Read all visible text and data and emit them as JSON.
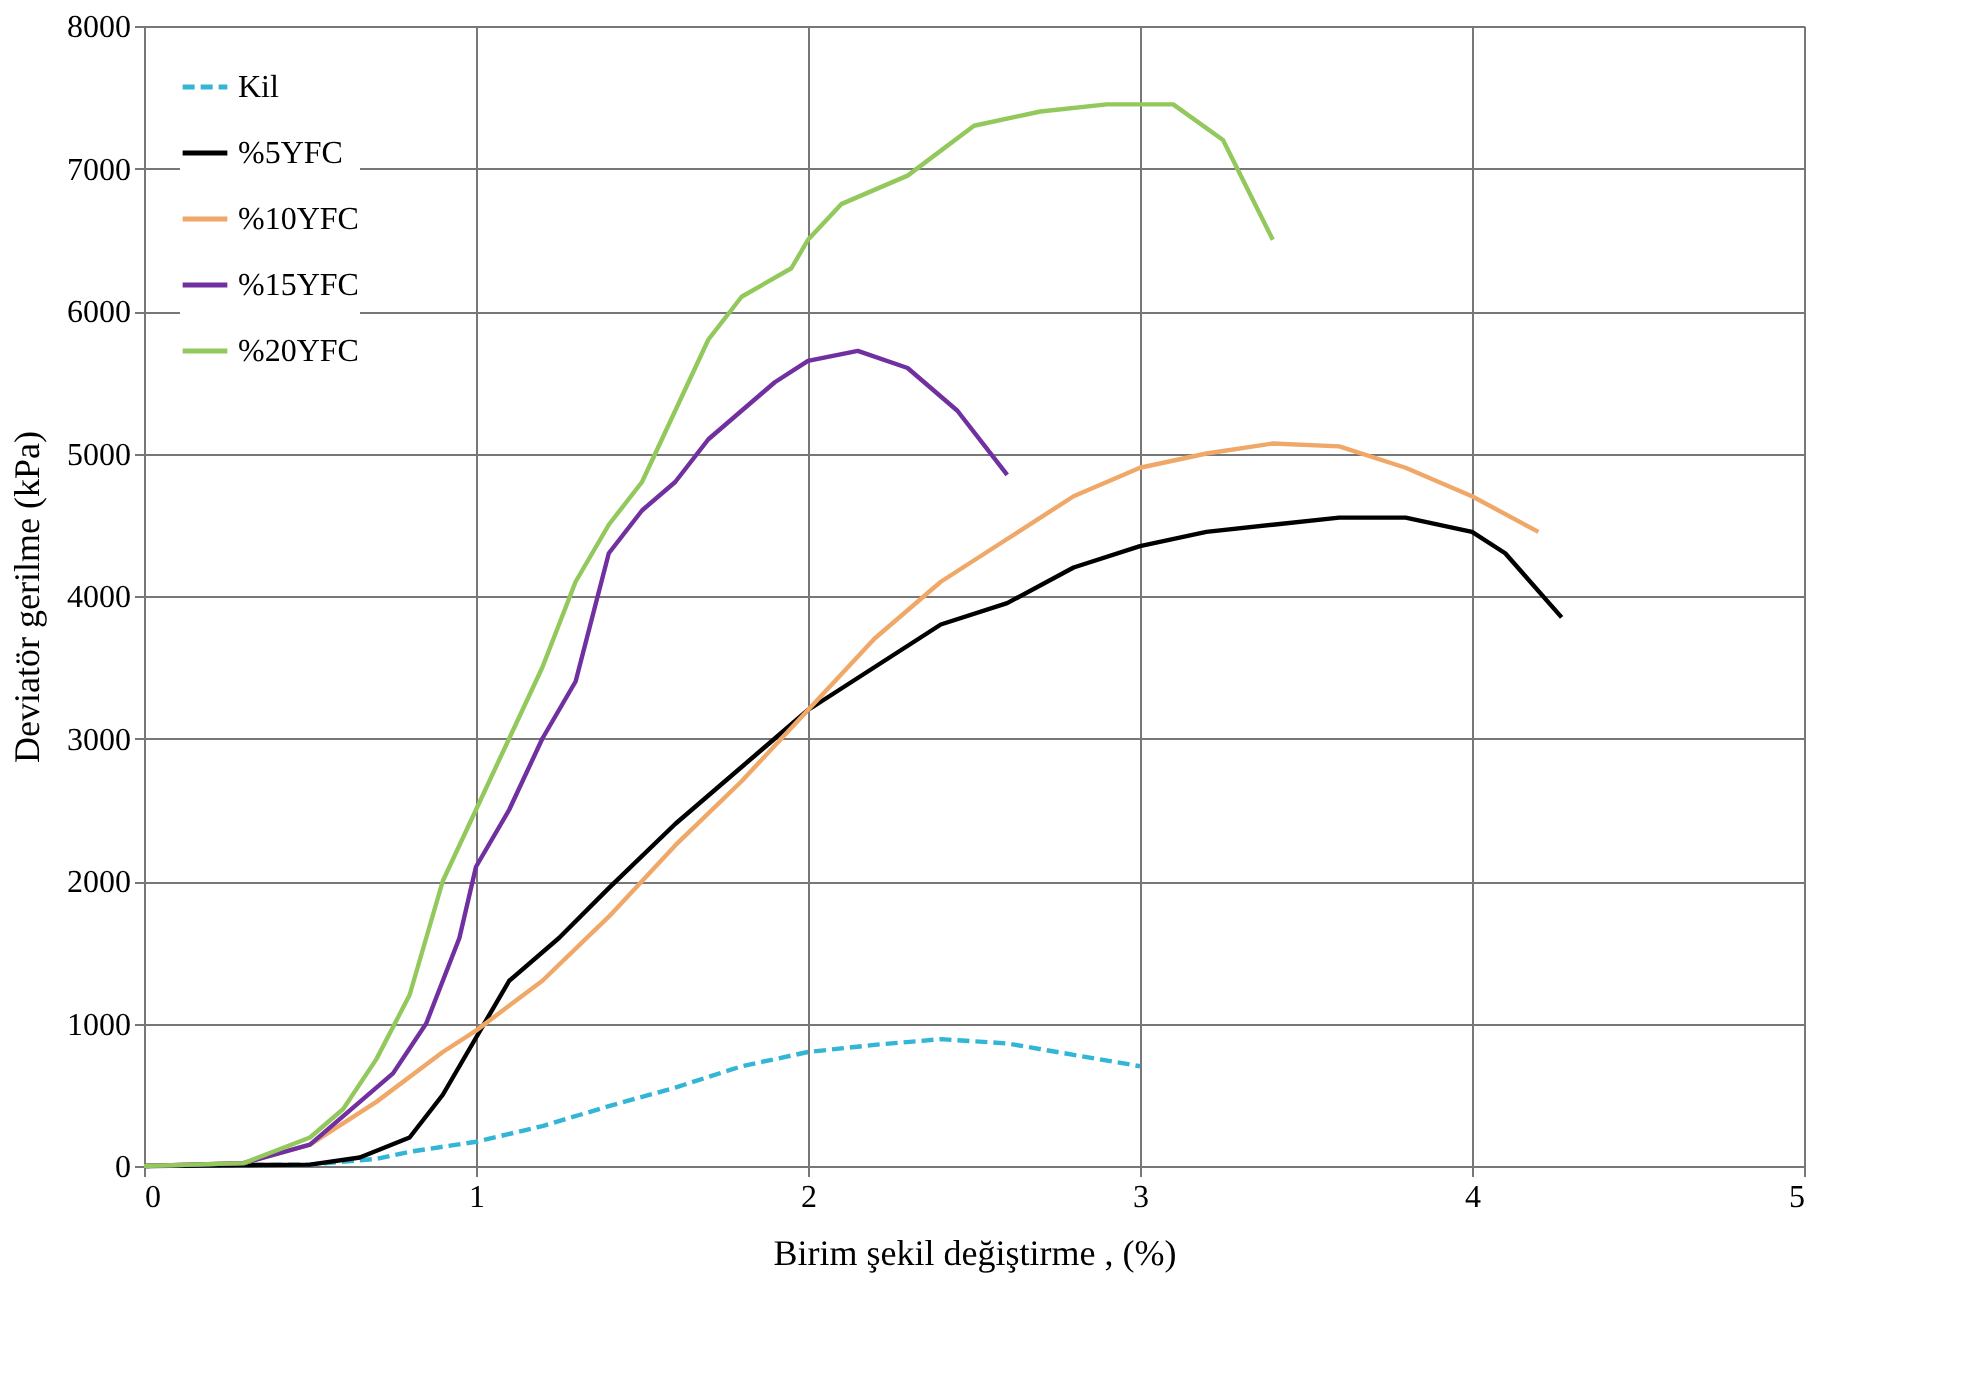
{
  "chart_data": {
    "type": "line",
    "xlabel": "Birim şekil değiştirme , (%)",
    "ylabel": "Deviatör gerilme (kPa)",
    "xlim": [
      0,
      5
    ],
    "xticks": [
      0,
      1,
      2,
      3,
      4,
      5
    ],
    "ylim": [
      0,
      8000
    ],
    "yticks": [
      0,
      1000,
      2000,
      3000,
      4000,
      5000,
      6000,
      7000,
      8000
    ],
    "grid": true,
    "legend": "top left",
    "marker": "none",
    "series": [
      {
        "name": "Kil",
        "color": "#33b5d6",
        "line_style": "dashed",
        "x": [
          0,
          0.5,
          0.7,
          0.8,
          1,
          1.2,
          1.4,
          1.6,
          1.8,
          2,
          2.2,
          2.4,
          2.6,
          2.8,
          3
        ],
        "values": [
          0,
          10,
          50,
          100,
          170,
          280,
          420,
          550,
          700,
          800,
          850,
          890,
          860,
          780,
          700
        ]
      },
      {
        "name": "%5YFC",
        "color": "#000000",
        "line_style": "solid",
        "x": [
          0,
          0.5,
          0.65,
          0.8,
          0.9,
          1,
          1.1,
          1.25,
          1.4,
          1.6,
          1.8,
          2,
          2.2,
          2.4,
          2.6,
          2.8,
          3,
          3.2,
          3.4,
          3.6,
          3.8,
          4,
          4.1,
          4.27
        ],
        "values": [
          0,
          10,
          60,
          200,
          500,
          900,
          1300,
          1600,
          1950,
          2400,
          2800,
          3200,
          3500,
          3800,
          3950,
          4200,
          4350,
          4450,
          4500,
          4550,
          4550,
          4450,
          4300,
          3850
        ]
      },
      {
        "name": "%10YFC",
        "color": "#f0a868",
        "line_style": "solid",
        "x": [
          0,
          0.3,
          0.5,
          0.7,
          0.9,
          1,
          1.2,
          1.4,
          1.6,
          1.8,
          2,
          2.2,
          2.4,
          2.6,
          2.8,
          3,
          3.2,
          3.4,
          3.6,
          3.8,
          4,
          4.2
        ],
        "values": [
          0,
          20,
          150,
          450,
          800,
          950,
          1300,
          1750,
          2250,
          2700,
          3200,
          3700,
          4100,
          4400,
          4700,
          4900,
          5000,
          5070,
          5050,
          4900,
          4700,
          4450
        ]
      },
      {
        "name": "%15YFC",
        "color": "#7030a0",
        "line_style": "solid",
        "x": [
          0,
          0.3,
          0.5,
          0.6,
          0.75,
          0.85,
          0.95,
          1,
          1.1,
          1.2,
          1.3,
          1.4,
          1.5,
          1.6,
          1.7,
          1.8,
          1.9,
          2,
          2.15,
          2.3,
          2.45,
          2.6
        ],
        "values": [
          0,
          20,
          150,
          350,
          650,
          1000,
          1600,
          2100,
          2500,
          3000,
          3400,
          4300,
          4600,
          4800,
          5100,
          5300,
          5500,
          5650,
          5720,
          5600,
          5300,
          4850
        ]
      },
      {
        "name": "%20YFC",
        "color": "#92c85c",
        "line_style": "solid",
        "x": [
          0,
          0.3,
          0.5,
          0.6,
          0.7,
          0.8,
          0.9,
          1,
          1.1,
          1.2,
          1.3,
          1.4,
          1.5,
          1.6,
          1.7,
          1.8,
          1.95,
          2,
          2.1,
          2.3,
          2.5,
          2.7,
          2.9,
          3.1,
          3.25,
          3.4
        ],
        "values": [
          0,
          20,
          200,
          400,
          750,
          1200,
          2000,
          2500,
          3000,
          3500,
          4100,
          4500,
          4800,
          5300,
          5800,
          6100,
          6300,
          6500,
          6750,
          6950,
          7300,
          7400,
          7450,
          7450,
          7200,
          6500
        ]
      }
    ]
  }
}
